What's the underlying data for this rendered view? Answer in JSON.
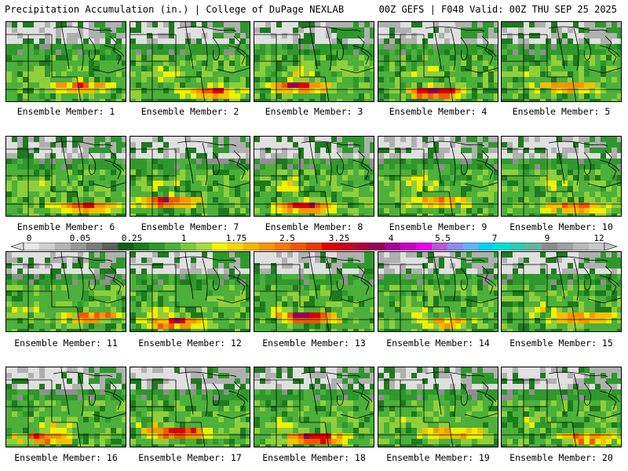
{
  "header": {
    "title": "Precipitation Accumulation (in.) | College of DuPage NEXLAB",
    "run_info": "00Z GEFS | F048 Valid: 00Z THU SEP 25 2025"
  },
  "colorbar": {
    "labels": [
      "0",
      "0.05",
      "0.25",
      "1",
      "1.75",
      "2.5",
      "3.25",
      "4",
      "5.5",
      "7",
      "9",
      "12"
    ],
    "colors": [
      "#e8e8e8",
      "#d0d0d0",
      "#b4b4b4",
      "#989898",
      "#7c7c7c",
      "#5f5f5f",
      "#135f16",
      "#1e7a1e",
      "#2f982d",
      "#4cb03a",
      "#7cc83c",
      "#a8dc3c",
      "#f5f500",
      "#f2d600",
      "#f5b400",
      "#f59600",
      "#f47a00",
      "#ef5a00",
      "#e63c00",
      "#dc0000",
      "#c8001e",
      "#b0003c",
      "#96005a",
      "#aa0096",
      "#c800c8",
      "#e600e6",
      "#b45ad2",
      "#8c8cf0",
      "#64b4f5",
      "#00d2f0",
      "#00e1d2",
      "#30c8b4",
      "#64b4a0",
      "#8c8c8c",
      "#a0a0a0",
      "#b9b9b9",
      "#c8c8c8"
    ]
  },
  "members": [
    {
      "label": "Ensemble Member: 1"
    },
    {
      "label": "Ensemble Member: 2"
    },
    {
      "label": "Ensemble Member: 3"
    },
    {
      "label": "Ensemble Member: 4"
    },
    {
      "label": "Ensemble Member: 5"
    },
    {
      "label": "Ensemble Member: 6"
    },
    {
      "label": "Ensemble Member: 7"
    },
    {
      "label": "Ensemble Member: 8"
    },
    {
      "label": "Ensemble Member: 9"
    },
    {
      "label": "Ensemble Member: 10"
    },
    {
      "label": "Ensemble Member: 11"
    },
    {
      "label": "Ensemble Member: 12"
    },
    {
      "label": "Ensemble Member: 13"
    },
    {
      "label": "Ensemble Member: 14"
    },
    {
      "label": "Ensemble Member: 15"
    },
    {
      "label": "Ensemble Member: 16"
    },
    {
      "label": "Ensemble Member: 17"
    },
    {
      "label": "Ensemble Member: 18"
    },
    {
      "label": "Ensemble Member: 19"
    },
    {
      "label": "Ensemble Member: 20"
    }
  ]
}
